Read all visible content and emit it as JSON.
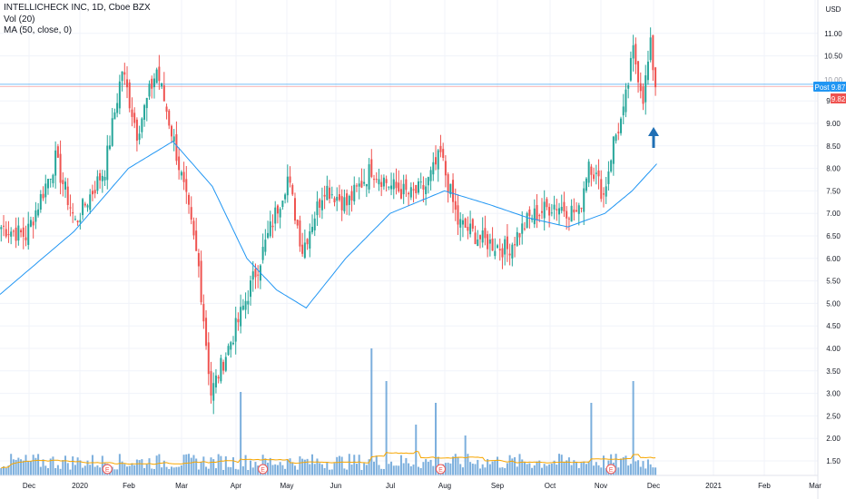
{
  "legend": {
    "title": "INTELLICHECK INC, 1D, Cboe BZX",
    "vol": "Vol (20)",
    "ma": "MA (50, close, 0)"
  },
  "currency": "USD",
  "price_tag": {
    "label": "Post",
    "value": "9.87",
    "value2": "9.82",
    "top_label": "10.00"
  },
  "earnings_marker": "E",
  "colors": {
    "up": "#26a69a",
    "down": "#ef5350",
    "ma": "#2196f3",
    "volume": "#5b9bd5",
    "vol_ma": "#f7a600",
    "arrow": "#1f6fb5",
    "tag_blue": "#2196f3",
    "tag_red": "#ef5350"
  },
  "chart_data": {
    "type": "candlestick",
    "title": "INTELLICHECK INC, 1D, Cboe BZX",
    "y_axis": {
      "ticks": [
        "1.50",
        "2.00",
        "2.50",
        "3.00",
        "3.50",
        "4.00",
        "4.50",
        "5.00",
        "5.50",
        "6.00",
        "6.50",
        "7.00",
        "7.50",
        "8.00",
        "8.50",
        "9.00",
        "9.50",
        "10.50",
        "11.00"
      ],
      "range": [
        1.1,
        11.2
      ],
      "unit": "USD"
    },
    "x_axis": {
      "labels": [
        "Dec",
        "2020",
        "Feb",
        "Mar",
        "Apr",
        "May",
        "Jun",
        "Jul",
        "Aug",
        "Sep",
        "Oct",
        "Nov",
        "Dec",
        "2021",
        "Feb",
        "Mar"
      ]
    },
    "earnings_positions": [
      43,
      106,
      178,
      247
    ],
    "key_prices": [
      {
        "x": 0,
        "close": 6.7
      },
      {
        "x": 10,
        "close": 6.5
      },
      {
        "x": 22,
        "close": 8.2
      },
      {
        "x": 30,
        "close": 6.8
      },
      {
        "x": 42,
        "close": 8.0
      },
      {
        "x": 49,
        "close": 10.2
      },
      {
        "x": 55,
        "close": 8.8
      },
      {
        "x": 63,
        "close": 10.2
      },
      {
        "x": 70,
        "close": 8.6
      },
      {
        "x": 76,
        "close": 7.0
      },
      {
        "x": 80,
        "close": 5.8
      },
      {
        "x": 85,
        "close": 3.0
      },
      {
        "x": 96,
        "close": 4.6
      },
      {
        "x": 105,
        "close": 6.0
      },
      {
        "x": 116,
        "close": 7.8
      },
      {
        "x": 122,
        "close": 6.2
      },
      {
        "x": 131,
        "close": 7.6
      },
      {
        "x": 140,
        "close": 7.2
      },
      {
        "x": 150,
        "close": 8.0
      },
      {
        "x": 158,
        "close": 7.6
      },
      {
        "x": 166,
        "close": 7.4
      },
      {
        "x": 172,
        "close": 7.6
      },
      {
        "x": 178,
        "close": 8.3
      },
      {
        "x": 185,
        "close": 6.8
      },
      {
        "x": 195,
        "close": 6.4
      },
      {
        "x": 205,
        "close": 6.2
      },
      {
        "x": 214,
        "close": 6.9
      },
      {
        "x": 224,
        "close": 7.2
      },
      {
        "x": 234,
        "close": 7.0
      },
      {
        "x": 238,
        "close": 8.2
      },
      {
        "x": 244,
        "close": 7.4
      },
      {
        "x": 248,
        "close": 8.6
      },
      {
        "x": 252,
        "close": 9.2
      },
      {
        "x": 256,
        "close": 10.6
      },
      {
        "x": 260,
        "close": 9.6
      },
      {
        "x": 263,
        "close": 10.7
      },
      {
        "x": 265,
        "close": 9.87
      }
    ],
    "ma_path": [
      {
        "x": 0,
        "v": 5.2
      },
      {
        "x": 30,
        "v": 6.6
      },
      {
        "x": 52,
        "v": 8.0
      },
      {
        "x": 70,
        "v": 8.6
      },
      {
        "x": 86,
        "v": 7.6
      },
      {
        "x": 100,
        "v": 6.0
      },
      {
        "x": 112,
        "v": 5.3
      },
      {
        "x": 124,
        "v": 4.9
      },
      {
        "x": 140,
        "v": 6.0
      },
      {
        "x": 158,
        "v": 7.0
      },
      {
        "x": 180,
        "v": 7.5
      },
      {
        "x": 198,
        "v": 7.2
      },
      {
        "x": 214,
        "v": 6.9
      },
      {
        "x": 230,
        "v": 6.7
      },
      {
        "x": 245,
        "v": 7.0
      },
      {
        "x": 256,
        "v": 7.5
      },
      {
        "x": 266,
        "v": 8.1
      }
    ],
    "volume_spikes": [
      {
        "x": 97,
        "v": 2.3
      },
      {
        "x": 150,
        "v": 3.5
      },
      {
        "x": 156,
        "v": 2.6
      },
      {
        "x": 168,
        "v": 1.4
      },
      {
        "x": 176,
        "v": 2.0
      },
      {
        "x": 188,
        "v": 1.1
      },
      {
        "x": 239,
        "v": 2.0
      },
      {
        "x": 256,
        "v": 2.6
      }
    ],
    "grid": true,
    "legend_position": "top-left"
  }
}
